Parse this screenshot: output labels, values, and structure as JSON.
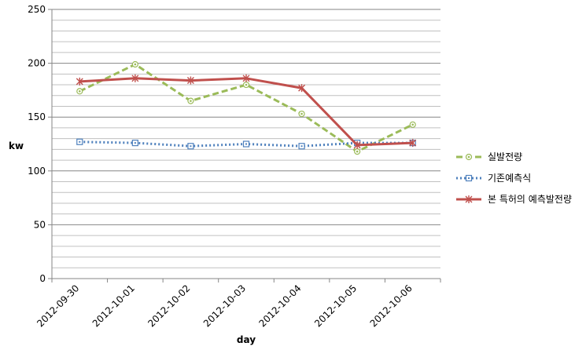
{
  "chart_data": {
    "type": "line",
    "title": "",
    "xlabel": "day",
    "ylabel": "kw",
    "categories": [
      "2012-09-30",
      "2012-10-01",
      "2012-10-02",
      "2012-10-03",
      "2012-10-04",
      "2012-10-05",
      "2012-10-06"
    ],
    "ylim": [
      0,
      250
    ],
    "yticks": [
      0,
      50,
      100,
      150,
      200,
      250
    ],
    "y_tick_labels": [
      "0",
      "50",
      "100",
      "150",
      "200",
      "250"
    ],
    "minor_gridline_step": 10,
    "grid": true,
    "legend_position": "right",
    "series": [
      {
        "name": "실발전량",
        "values": [
          174,
          199,
          165,
          180,
          153,
          118,
          143
        ],
        "color": "#9bbb59",
        "line_style": "dashed",
        "marker": "circle"
      },
      {
        "name": "기존예측식",
        "values": [
          127,
          126,
          123,
          125,
          123,
          126,
          126
        ],
        "color": "#4f81bd",
        "line_style": "dotted",
        "marker": "square"
      },
      {
        "name": "본 특허의 예측발전량",
        "values": [
          183,
          186,
          184,
          186,
          177,
          124,
          126
        ],
        "color": "#c0504d",
        "line_style": "solid",
        "marker": "star"
      }
    ]
  }
}
